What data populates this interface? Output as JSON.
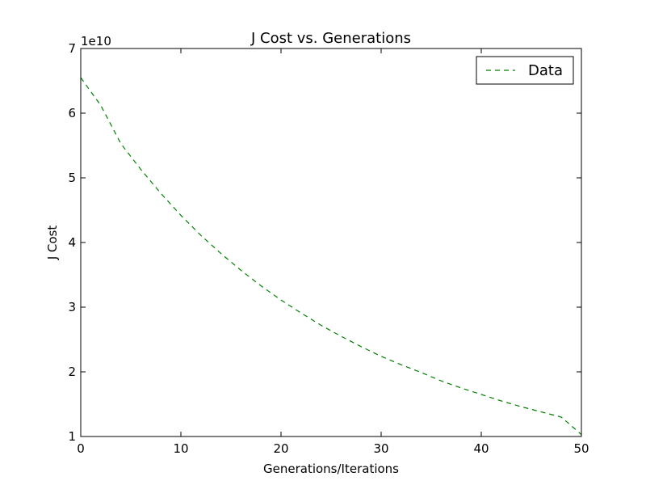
{
  "chart_data": {
    "type": "line",
    "title": "J Cost vs. Generations",
    "xlabel": "Generations/Iterations",
    "ylabel": "J Cost",
    "offset_label": "1e10",
    "xlim": [
      0,
      50
    ],
    "ylim": [
      1,
      7
    ],
    "xticks": [
      0,
      10,
      20,
      30,
      40,
      50
    ],
    "yticks": [
      1,
      2,
      3,
      4,
      5,
      6,
      7
    ],
    "grid": false,
    "legend_position": "upper right",
    "series": [
      {
        "name": "Data",
        "color": "#008000",
        "line_style": "dashed",
        "x": [
          0,
          2,
          4,
          6,
          8,
          10,
          12,
          14,
          16,
          18,
          20,
          22,
          24,
          26,
          28,
          30,
          32,
          34,
          36,
          38,
          40,
          42,
          44,
          46,
          48,
          50
        ],
        "y": [
          6.55,
          6.12,
          5.53,
          5.13,
          4.76,
          4.42,
          4.11,
          3.83,
          3.57,
          3.33,
          3.11,
          2.91,
          2.72,
          2.55,
          2.39,
          2.24,
          2.11,
          1.99,
          1.86,
          1.75,
          1.65,
          1.55,
          1.46,
          1.38,
          1.3,
          1.03
        ]
      }
    ]
  }
}
